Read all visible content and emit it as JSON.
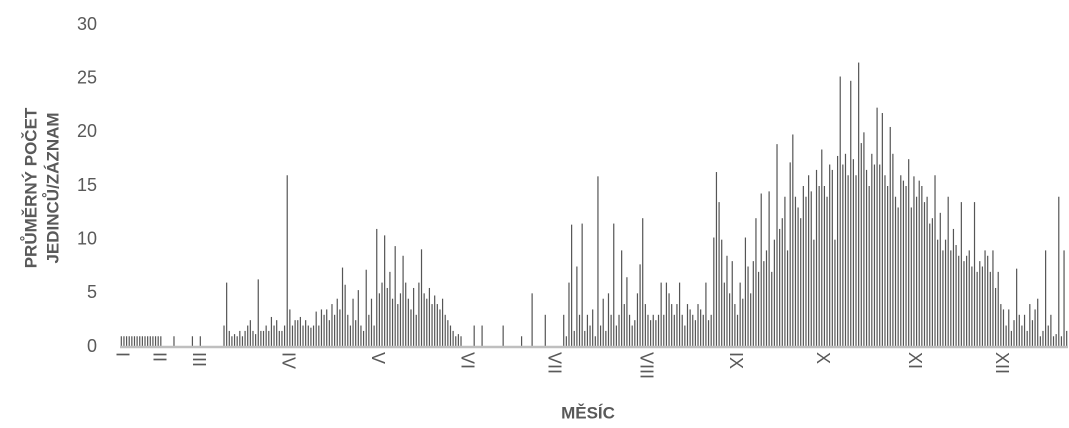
{
  "chart_data": {
    "type": "bar",
    "y_label": [
      "PRŮMĚRNÝ POČET",
      "JEDINCŮ/ZÁZNAM"
    ],
    "x_label": "MĚSÍC",
    "color": "#555555",
    "ylim": [
      0,
      30
    ],
    "yticks": [
      0,
      5,
      10,
      15,
      20,
      25,
      30
    ],
    "categories": [
      "I",
      null,
      null,
      null,
      null,
      null,
      null,
      null,
      null,
      null,
      null,
      null,
      null,
      null,
      "II",
      null,
      null,
      null,
      null,
      null,
      null,
      null,
      null,
      null,
      null,
      null,
      null,
      null,
      null,
      "III",
      null,
      null,
      null,
      null,
      null,
      null,
      null,
      null,
      null,
      null,
      null,
      null,
      null,
      null,
      null,
      null,
      null,
      null,
      null,
      null,
      null,
      null,
      null,
      null,
      null,
      null,
      null,
      null,
      null,
      null,
      null,
      null,
      null,
      "IV",
      null,
      null,
      null,
      null,
      null,
      null,
      null,
      null,
      null,
      null,
      null,
      null,
      null,
      null,
      null,
      null,
      null,
      null,
      null,
      null,
      null,
      null,
      null,
      null,
      null,
      null,
      null,
      null,
      null,
      null,
      null,
      null,
      null,
      "V",
      null,
      null,
      null,
      null,
      null,
      null,
      null,
      null,
      null,
      null,
      null,
      null,
      null,
      null,
      null,
      null,
      null,
      null,
      null,
      null,
      null,
      null,
      null,
      null,
      null,
      null,
      null,
      null,
      null,
      null,
      null,
      null,
      null,
      "VI",
      null,
      null,
      null,
      null,
      null,
      null,
      null,
      null,
      null,
      null,
      null,
      null,
      null,
      null,
      null,
      null,
      null,
      null,
      null,
      null,
      null,
      null,
      null,
      null,
      null,
      null,
      null,
      null,
      null,
      null,
      null,
      null,
      "VII",
      null,
      null,
      null,
      null,
      null,
      null,
      null,
      null,
      null,
      null,
      null,
      null,
      null,
      null,
      null,
      null,
      null,
      null,
      null,
      null,
      null,
      null,
      null,
      null,
      null,
      null,
      null,
      null,
      null,
      null,
      null,
      null,
      null,
      null,
      "VIII",
      null,
      null,
      null,
      null,
      null,
      null,
      null,
      null,
      null,
      null,
      null,
      null,
      null,
      null,
      null,
      null,
      null,
      null,
      null,
      null,
      null,
      null,
      null,
      null,
      null,
      null,
      null,
      null,
      null,
      null,
      null,
      null,
      null,
      "IX",
      null,
      null,
      null,
      null,
      null,
      null,
      null,
      null,
      null,
      null,
      null,
      null,
      null,
      null,
      null,
      null,
      null,
      null,
      null,
      null,
      null,
      null,
      null,
      null,
      null,
      null,
      null,
      null,
      null,
      null,
      null,
      null,
      "X",
      null,
      null,
      null,
      null,
      null,
      null,
      null,
      null,
      null,
      null,
      null,
      null,
      null,
      null,
      null,
      null,
      null,
      null,
      null,
      null,
      null,
      null,
      null,
      null,
      null,
      null,
      null,
      null,
      null,
      null,
      null,
      null,
      null,
      null,
      "XI",
      null,
      null,
      null,
      null,
      null,
      null,
      null,
      null,
      null,
      null,
      null,
      null,
      null,
      null,
      null,
      null,
      null,
      null,
      null,
      null,
      null,
      null,
      null,
      null,
      null,
      null,
      null,
      null,
      null,
      null,
      null,
      null,
      "XII",
      null,
      null,
      null,
      null,
      null,
      null,
      null,
      null,
      null,
      null,
      null,
      null,
      null,
      null,
      null,
      null,
      null,
      null,
      null,
      null,
      null,
      null,
      null,
      null,
      null
    ],
    "values": [
      1,
      1,
      1,
      1,
      1,
      1,
      1,
      1,
      1,
      1,
      1,
      1,
      1,
      1,
      1,
      1,
      0,
      0,
      0,
      0,
      1,
      0,
      0,
      0,
      0,
      0,
      0,
      1,
      0,
      0,
      1,
      0,
      0,
      0,
      0,
      0,
      0,
      0,
      0,
      2,
      6,
      1.5,
      1,
      1.2,
      1,
      1.5,
      1,
      1.5,
      2,
      2.5,
      1.5,
      1.2,
      6.3,
      1.5,
      1.5,
      2,
      1.5,
      2.8,
      2,
      2.5,
      1.5,
      1.5,
      2,
      16,
      3.5,
      2,
      2.5,
      2.5,
      2.8,
      2,
      2.5,
      2,
      1.8,
      2,
      3.3,
      2,
      3.5,
      3,
      3.5,
      2.5,
      4,
      3,
      4.5,
      3.5,
      7.4,
      5.8,
      3,
      2,
      4.5,
      2.5,
      5.3,
      2,
      1.5,
      7.2,
      3,
      4.5,
      2,
      11,
      5,
      6,
      10.4,
      5.5,
      7,
      4.5,
      9.4,
      4,
      5,
      8.5,
      6,
      4.5,
      3.5,
      5.5,
      3,
      6,
      9.1,
      5,
      4.5,
      5.5,
      4,
      4.8,
      4,
      3.5,
      4.5,
      3,
      2.5,
      2,
      1.5,
      1,
      1.2,
      1,
      0,
      0,
      0,
      0,
      2,
      0,
      0,
      2,
      0,
      0,
      0,
      0,
      0,
      0,
      0,
      2,
      0,
      0,
      0,
      0,
      0,
      0,
      1,
      0,
      0,
      0,
      5,
      0,
      0,
      0,
      0,
      3,
      0,
      0,
      0,
      0,
      0,
      0,
      3,
      1,
      6,
      11.4,
      1.5,
      7.5,
      3,
      11.5,
      1.5,
      3,
      2,
      3.5,
      1,
      15.9,
      2,
      4.5,
      1.5,
      5,
      3,
      11.5,
      2,
      3,
      9,
      4,
      6.5,
      3,
      2,
      2.5,
      5,
      7.7,
      12,
      4,
      3,
      2.5,
      3,
      2.5,
      3,
      6,
      3,
      6,
      5,
      4,
      3,
      4,
      6,
      3,
      2,
      4,
      3.5,
      3,
      2.5,
      4,
      3.5,
      3,
      6,
      2.5,
      3,
      10.2,
      16.3,
      13.5,
      10,
      6,
      8.5,
      5,
      8,
      4,
      3,
      6,
      4.5,
      10.2,
      7.5,
      5,
      8,
      12,
      7,
      14.3,
      8,
      9,
      14.5,
      7,
      10,
      18.9,
      11,
      12,
      14,
      9,
      17.2,
      19.8,
      14,
      13,
      12,
      15,
      14,
      16,
      14.5,
      10,
      16.5,
      15,
      18.4,
      15,
      14,
      17,
      16.5,
      10,
      17.8,
      25.2,
      17,
      18,
      16,
      24.8,
      17.5,
      16,
      26.5,
      19,
      20,
      16.5,
      15,
      18,
      17,
      22.3,
      17,
      21.8,
      16,
      15,
      20.5,
      18,
      14,
      13,
      16,
      15.5,
      15,
      17.5,
      13,
      15.9,
      14,
      15.5,
      15,
      13.5,
      14,
      11.5,
      12,
      16,
      10,
      12.5,
      9,
      10,
      14,
      9,
      11,
      9.5,
      8.5,
      13.5,
      8,
      8.5,
      9,
      7.5,
      13.5,
      7,
      8,
      7.5,
      9,
      8.5,
      7,
      9,
      5.5,
      7,
      4,
      3.5,
      2,
      3.5,
      1.5,
      2.5,
      7.3,
      3,
      2,
      3,
      1.5,
      4,
      2.5,
      3.5,
      4.5,
      1,
      1.5,
      9,
      2,
      3,
      1,
      1.2,
      14,
      1,
      9,
      1.5
    ]
  }
}
